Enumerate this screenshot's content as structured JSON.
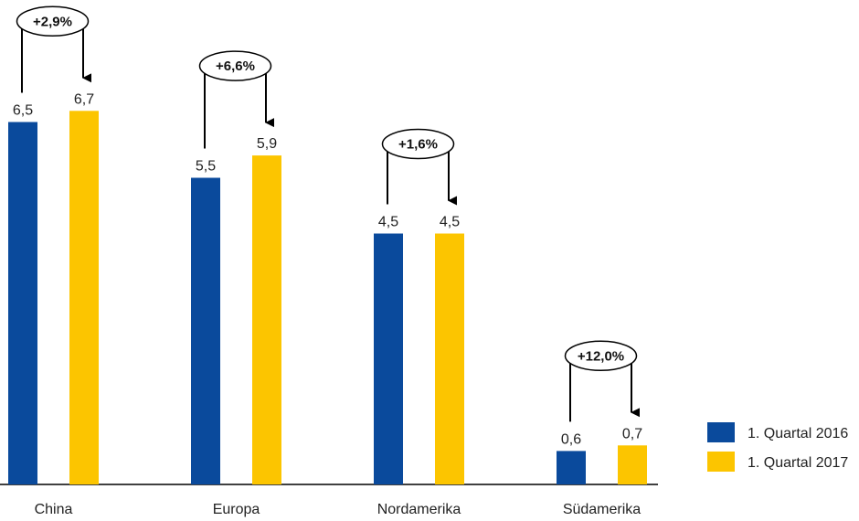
{
  "chart_data": {
    "type": "bar",
    "title": "",
    "xlabel": "",
    "ylabel": "",
    "ylim": [
      0,
      7
    ],
    "grid": false,
    "legend_position": "bottom-right",
    "categories": [
      "China",
      "Europa",
      "Nordamerika",
      "Südamerika"
    ],
    "series": [
      {
        "name": "1. Quartal 2016",
        "color": "#0a4a9c",
        "values": [
          6.5,
          5.5,
          4.5,
          0.6
        ],
        "labels": [
          "6,5",
          "5,5",
          "4,5",
          "0,6"
        ]
      },
      {
        "name": "1. Quartal 2017",
        "color": "#fcc500",
        "values": [
          6.7,
          5.9,
          4.5,
          0.7
        ],
        "labels": [
          "6,7",
          "5,9",
          "4,5",
          "0,7"
        ]
      }
    ],
    "annotations": [
      "+2,9%",
      "+6,6%",
      "+1,6%",
      "+12,0%"
    ]
  }
}
